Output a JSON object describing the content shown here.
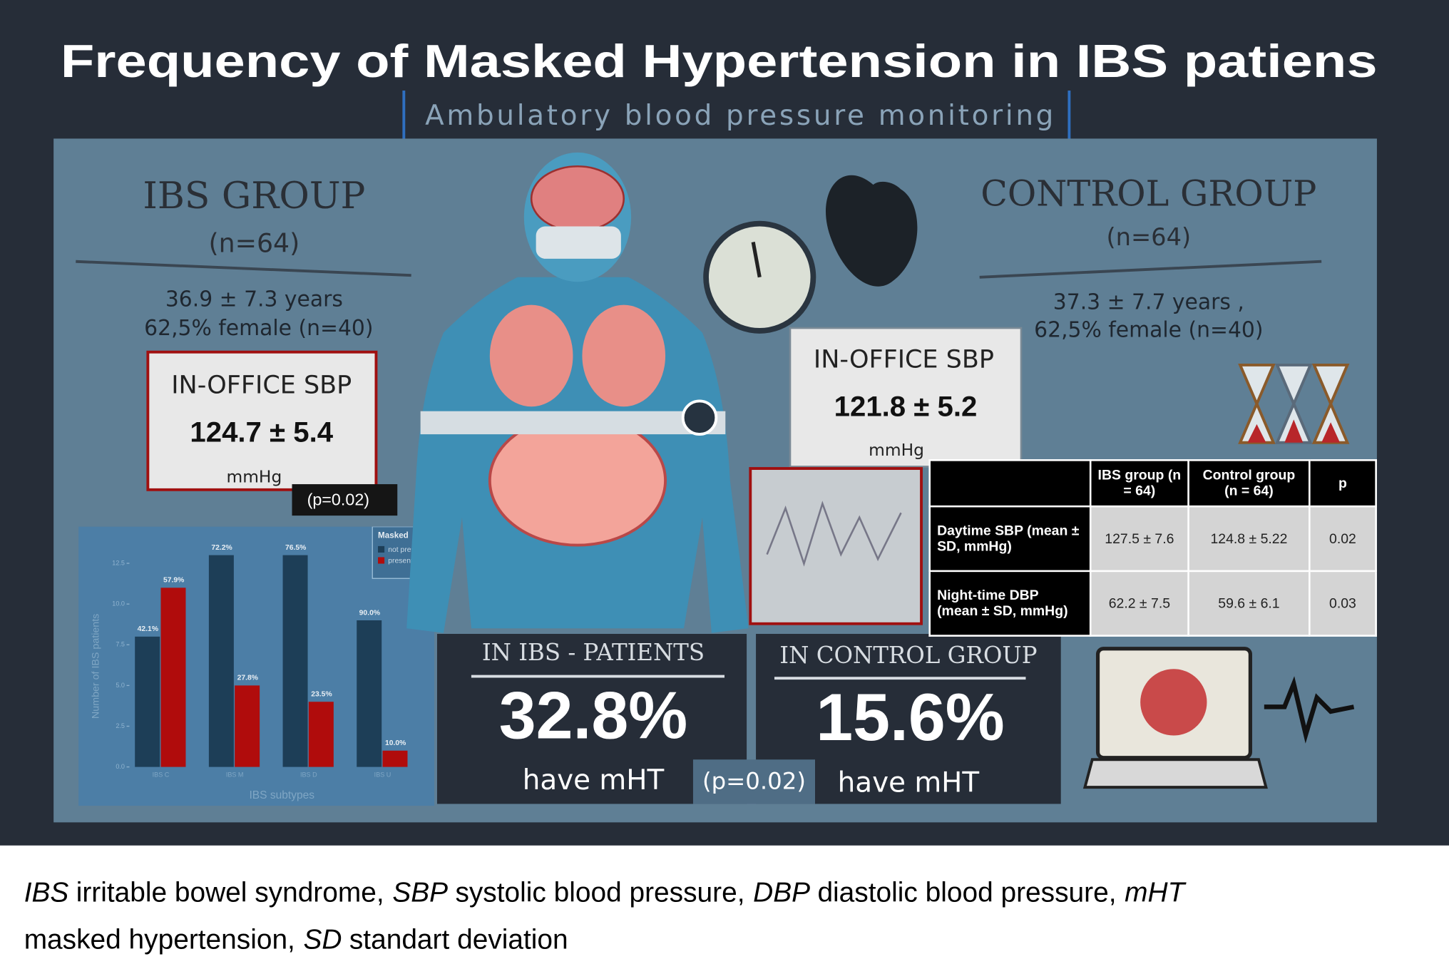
{
  "title": "Frequency of Masked Hypertension in IBS patiens",
  "subtitle": "Ambulatory blood pressure monitoring",
  "ibs_group": {
    "heading": "IBS GROUP",
    "n": "(n=64)",
    "age": "36.9 ± 7.3 years",
    "female": "62,5% female (n=40)",
    "sbp_label": "IN-OFFICE SBP",
    "sbp": "124.7 ± 5.4",
    "unit": "mmHg"
  },
  "sbp_p": "(p=0.02)",
  "control_group": {
    "heading": "CONTROL GROUP",
    "n": "(n=64)",
    "age": "37.3 ± 7.7 years ,",
    "female": "62,5% female (n=40)",
    "sbp_label": "IN-OFFICE SBP",
    "sbp": "121.8 ± 5.2",
    "unit": "mmHg"
  },
  "table": {
    "header": [
      "IBS group (n = 64)",
      "Control group (n = 64)",
      "p"
    ],
    "rows": [
      [
        "Daytime SBP (mean ± SD, mmHg)",
        "127.5 ± 7.6",
        "124.8 ± 5.22",
        "0.02"
      ],
      [
        "Night-time DBP (mean ± SD, mmHg)",
        "62.2 ± 7.5",
        "59.6 ± 6.1",
        "0.03"
      ]
    ]
  },
  "mht": {
    "ibs": {
      "heading": "IN IBS - PATIENTS",
      "value": "32.8%",
      "text": "have mHT"
    },
    "control": {
      "heading": "IN CONTROL GROUP",
      "value": "15.6%",
      "text": "have mHT"
    },
    "p": "(p=0.02)"
  },
  "caption": [
    {
      "abbr": "IBS",
      "text": "irritable bowel syndrome,"
    },
    {
      "abbr": "SBP",
      "text": "systolic blood pressure,"
    },
    {
      "abbr": "DBP",
      "text": "diastolic blood pressure,"
    },
    {
      "abbr": "mHT",
      "text": "masked hypertension,"
    },
    {
      "abbr": "SD",
      "text": "standart deviation"
    }
  ],
  "chart_data": {
    "type": "bar",
    "x_label": "IBS subtypes",
    "y_label": "Number of IBS patients",
    "legend_title": "Masked",
    "categories": [
      "IBS C",
      "IBS M",
      "IBS D",
      "IBS U"
    ],
    "series": [
      {
        "name": "not present",
        "color": "#1d3e57",
        "values": [
          8,
          13,
          13,
          9
        ],
        "value_labels": [
          "42.1%",
          "72.2%",
          "76.5%",
          "90.0%"
        ]
      },
      {
        "name": "present",
        "color": "#b00c0c",
        "values": [
          11,
          5,
          4,
          1
        ],
        "value_labels": [
          "57.9%",
          "27.8%",
          "23.5%",
          "10.0%"
        ]
      }
    ],
    "ylim": [
      0,
      13.5
    ],
    "yticks": [
      {
        "value": 0,
        "label": "0.0"
      },
      {
        "value": 2.5,
        "label": "2.5"
      },
      {
        "value": 5,
        "label": "5.0"
      },
      {
        "value": 7.5,
        "label": "7.5"
      },
      {
        "value": 10,
        "label": "10.0"
      },
      {
        "value": 12.5,
        "label": "12.5"
      }
    ]
  }
}
